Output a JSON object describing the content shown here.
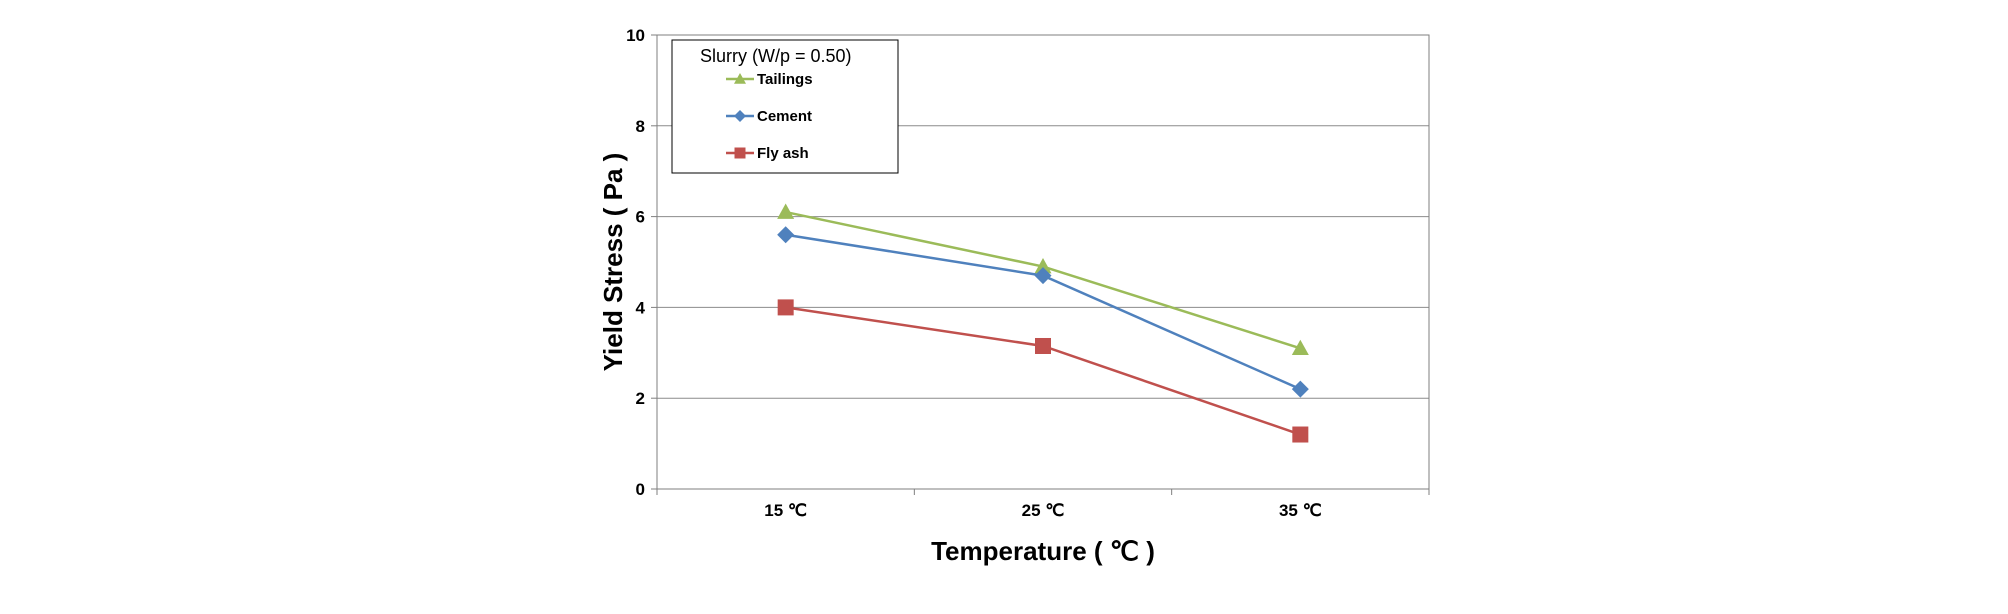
{
  "chart_data": {
    "type": "line",
    "title": "",
    "xlabel": "Temperature ( ℃ )",
    "ylabel": "Yield Stress ( Pa )",
    "categories": [
      "15 ℃",
      "25 ℃",
      "35 ℃"
    ],
    "ylim": [
      0,
      10
    ],
    "yticks": [
      0,
      2,
      4,
      6,
      8,
      10
    ],
    "grid": true,
    "legend_title": "Slurry (W/p = 0.50)",
    "legend_position": "top-left",
    "series": [
      {
        "name": "Tailings",
        "values": [
          6.1,
          4.9,
          3.1
        ],
        "color": "#9BBB59",
        "marker": "triangle"
      },
      {
        "name": "Cement",
        "values": [
          5.6,
          4.7,
          2.2
        ],
        "color": "#4F81BD",
        "marker": "diamond"
      },
      {
        "name": "Fly ash",
        "values": [
          4.0,
          3.15,
          1.2
        ],
        "color": "#C0504D",
        "marker": "square"
      }
    ]
  }
}
